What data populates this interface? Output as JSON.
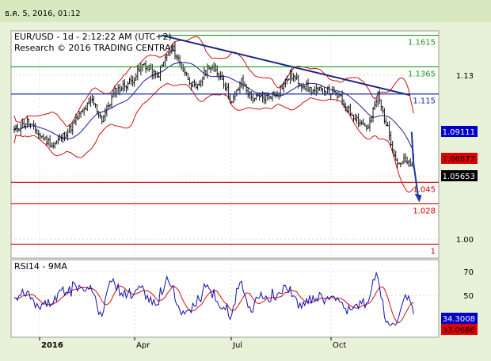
{
  "window": {
    "timestamp": "ธ.ค. 5, 2016, 01:12"
  },
  "chart_data": {
    "type": "candlestick",
    "title": "EUR/USD - 1d - 2:12:22 AM (UTC+2)",
    "subtitle": "Research © 2016 TRADING CENTRAL",
    "x_tick_labels": [
      "2016",
      "Apr",
      "Jul",
      "Oct"
    ],
    "price_axis": {
      "ylim": [
        0.985,
        1.165
      ],
      "tick_labels": [
        "1.13",
        "1.05",
        "1.00"
      ],
      "tick_values": [
        1.13,
        1.05,
        1.0
      ]
    },
    "horizontal_levels": [
      {
        "value": 1.1615,
        "label": "1.1615",
        "color": "#1a9a1a"
      },
      {
        "value": 1.1365,
        "label": "1.1365",
        "color": "#1a9a1a"
      },
      {
        "value": 1.115,
        "label": "1.115",
        "color": "#1a2aa0"
      },
      {
        "value": 1.045,
        "label": "1.045",
        "color": "#d00000"
      },
      {
        "value": 1.028,
        "label": "1.028",
        "color": "#d00000"
      },
      {
        "value": 0.996,
        "label": "1",
        "color": "#d00000"
      }
    ],
    "price_badges": [
      {
        "value": 1.09111,
        "label": "1.09111",
        "bg": "#0000c8",
        "fg": "#ffffff"
      },
      {
        "value": 1.06872,
        "label": "1.06872",
        "bg": "#e00000",
        "fg": "#000000"
      },
      {
        "value": 1.05653,
        "label": "1.05653",
        "bg": "#000000",
        "fg": "#ffffff"
      }
    ],
    "trendline": {
      "from": [
        -7,
        1.1615
      ],
      "to": [
        1,
        1.114
      ],
      "color": "#1a237e"
    },
    "forecast_arrow": {
      "from": [
        9,
        1.085
      ],
      "via": [
        10,
        1.061
      ],
      "to": [
        13,
        1.031
      ],
      "color": "#1a3aa0"
    },
    "rsi": {
      "title": "RSI14 - 9MA",
      "ylim": [
        15,
        80
      ],
      "tick_labels": [
        "70",
        "50"
      ],
      "tick_values": [
        70,
        50
      ],
      "badges": [
        {
          "value": 34.3008,
          "label": "34.3008",
          "bg": "#0000c8",
          "fg": "#ffffff"
        },
        {
          "value": 33.0686,
          "label": "33.0686",
          "bg": "#e00000",
          "fg": "#000000"
        }
      ]
    }
  }
}
